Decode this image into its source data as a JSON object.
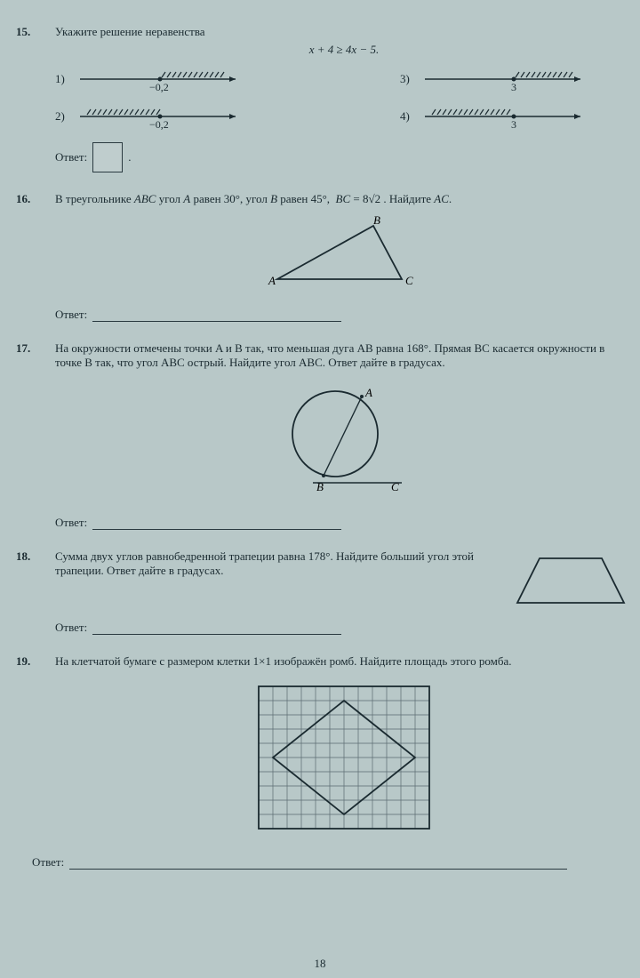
{
  "page_number": "18",
  "p15": {
    "num": "15.",
    "prompt": "Укажите решение неравенства",
    "formula": "x + 4 ≥ 4x − 5.",
    "choices": {
      "c1": {
        "label": "1)",
        "tick": "−0,2",
        "hatch_side": "right",
        "ray": "both"
      },
      "c2": {
        "label": "2)",
        "tick": "−0,2",
        "hatch_side": "left",
        "ray": "both"
      },
      "c3": {
        "label": "3)",
        "tick": "3",
        "hatch_side": "right",
        "ray": "both"
      },
      "c4": {
        "label": "4)",
        "tick": "3",
        "hatch_side": "left",
        "ray": "both"
      }
    },
    "answer_label": "Ответ:"
  },
  "p16": {
    "num": "16.",
    "prompt": "В треугольнике ABC угол A равен 30°, угол B равен 45°,  BC = 8√2 . Найдите AC.",
    "labels": {
      "A": "A",
      "B": "B",
      "C": "C"
    },
    "answer_label": "Ответ:"
  },
  "p17": {
    "num": "17.",
    "prompt": "На окружности отмечены точки A и B так, что меньшая дуга AB равна 168°. Прямая BC касается окружности в точке B так, что угол ABC острый. Найдите угол ABC. Ответ дайте в градусах.",
    "labels": {
      "A": "A",
      "B": "B",
      "C": "C"
    },
    "answer_label": "Ответ:"
  },
  "p18": {
    "num": "18.",
    "prompt": "Сумма двух углов равнобедренной трапеции равна 178°. Найдите больший угол этой трапеции. Ответ дайте в градусах.",
    "answer_label": "Ответ:"
  },
  "p19": {
    "num": "19.",
    "prompt": "На клетчатой бумаге с размером клетки 1×1 изображён ромб. Найдите площадь этого ромба.",
    "grid": {
      "cols": 12,
      "rows": 10,
      "cell": 16
    },
    "rhombus": {
      "pts": [
        [
          6,
          1
        ],
        [
          11,
          5
        ],
        [
          6,
          9
        ],
        [
          1,
          5
        ]
      ]
    },
    "answer_label": "Ответ:"
  }
}
